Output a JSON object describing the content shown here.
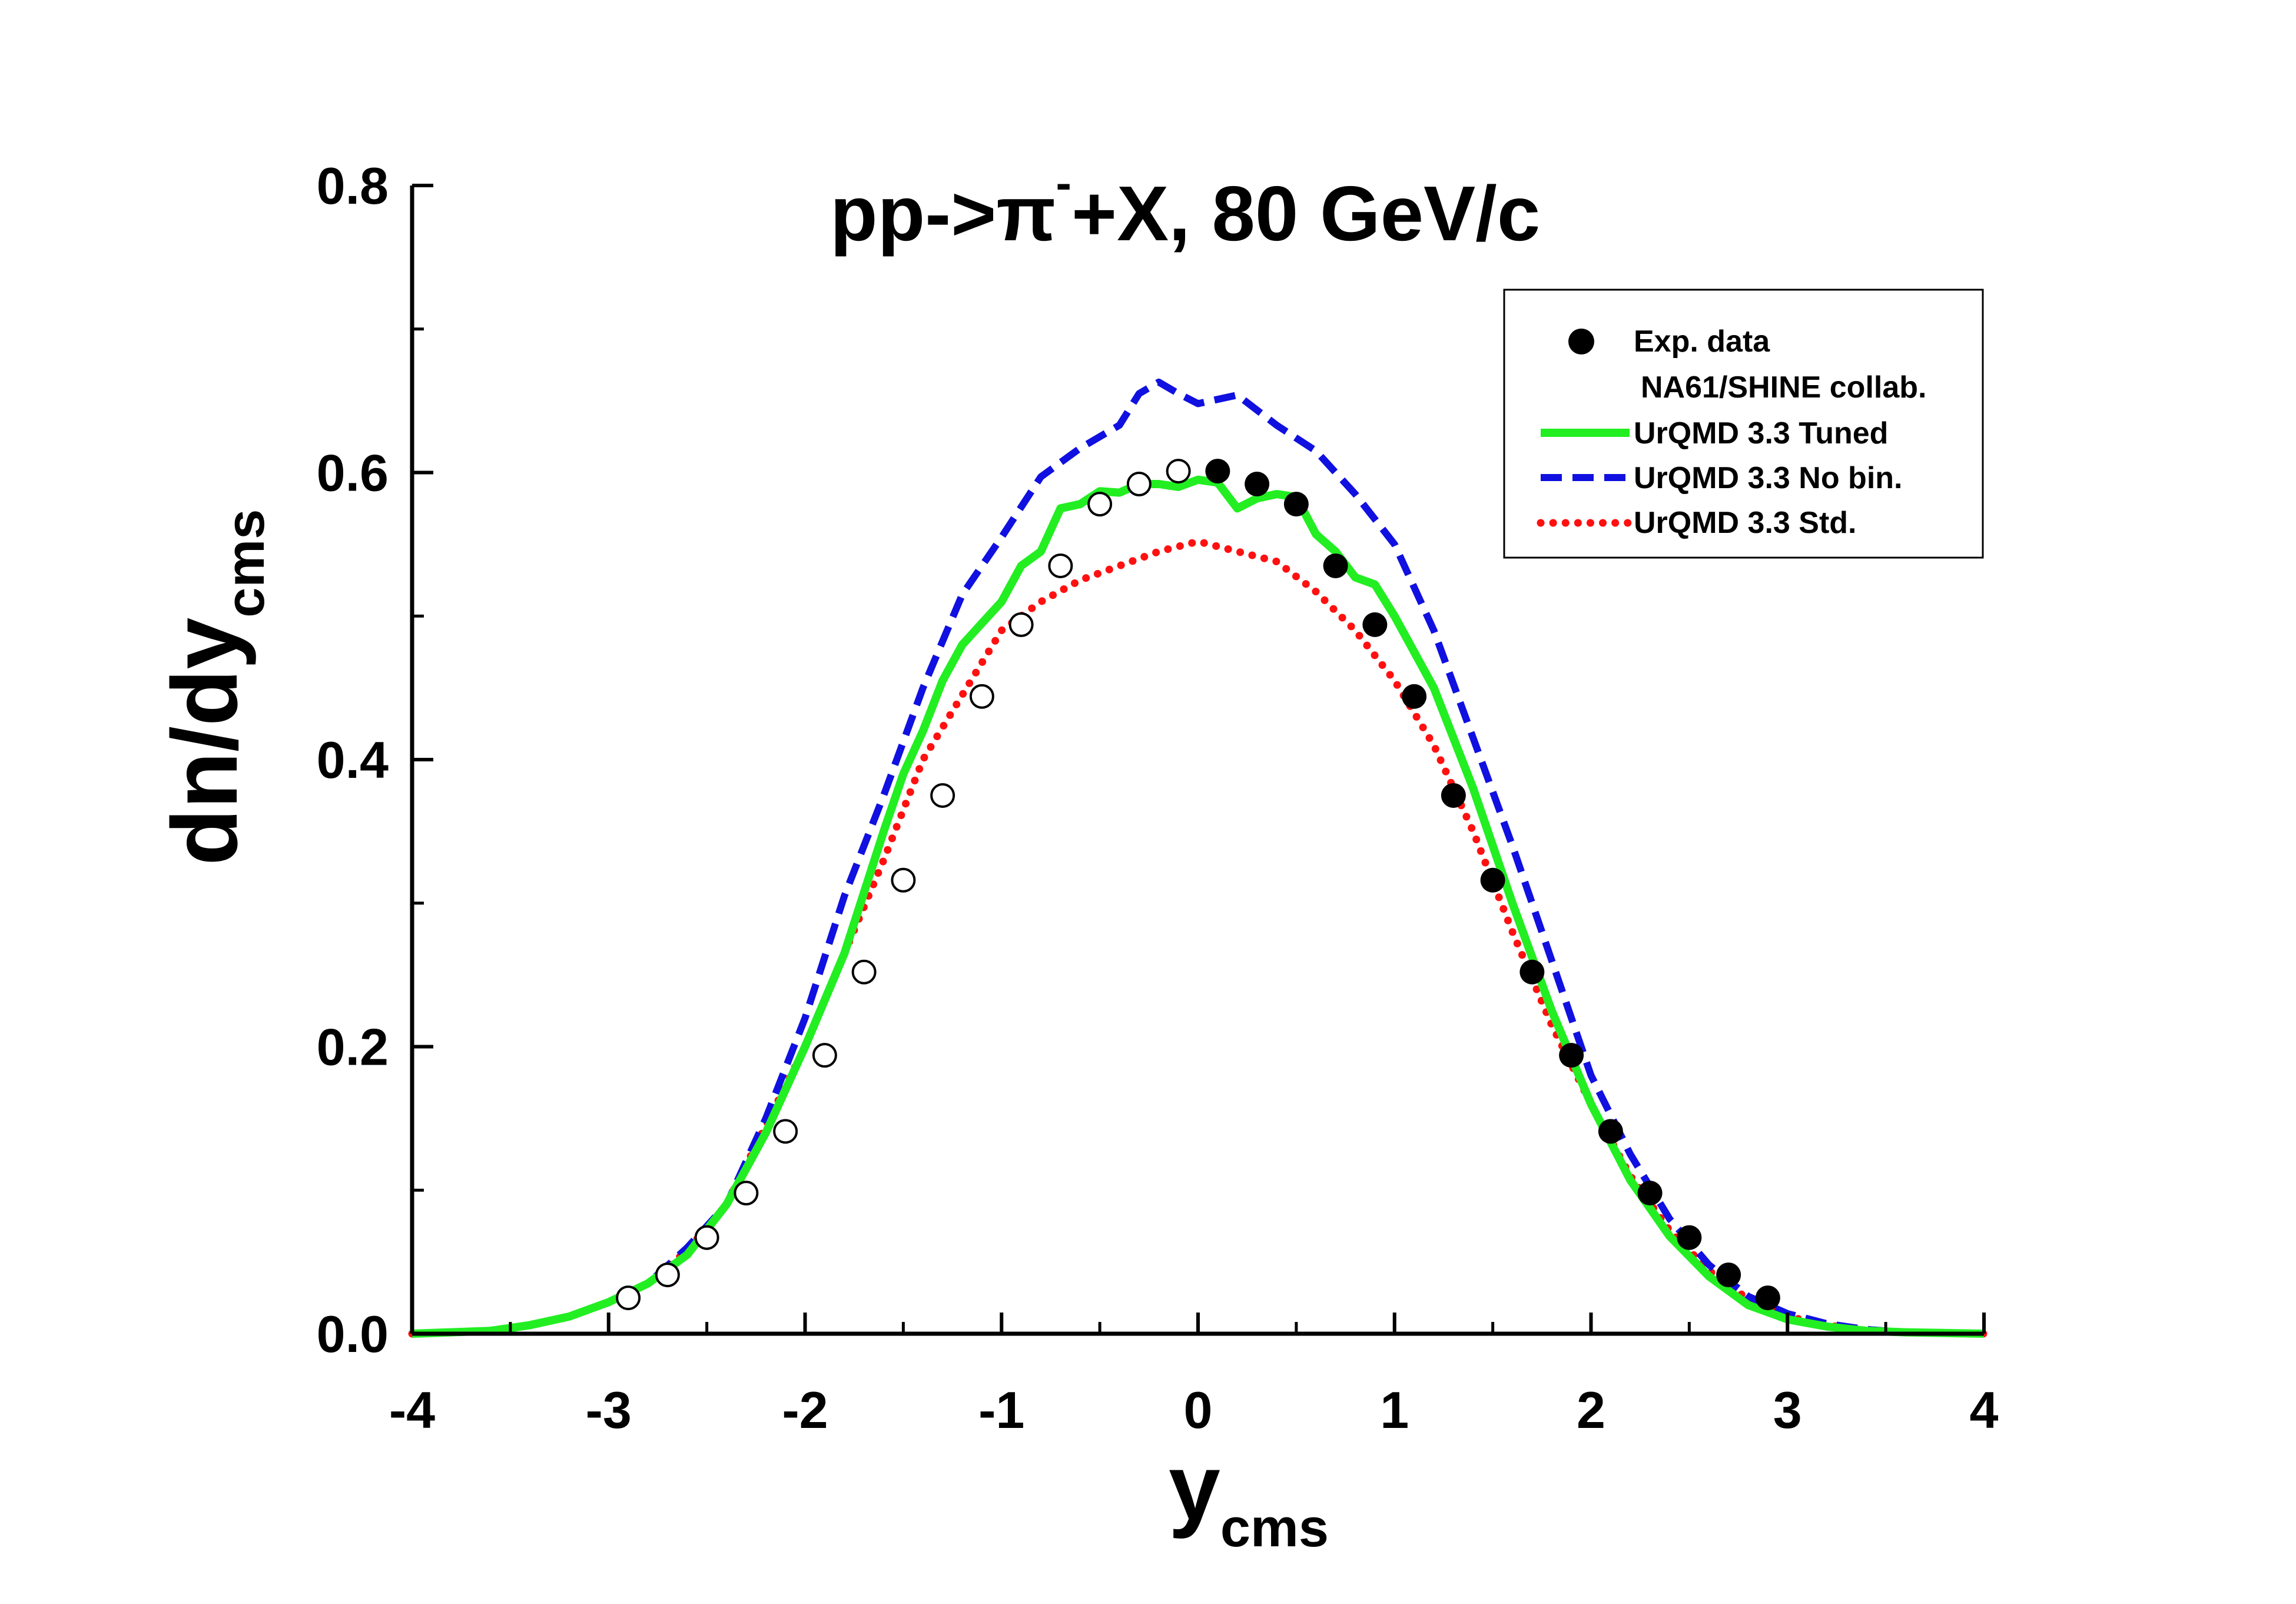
{
  "chart_data": {
    "type": "line",
    "title": {
      "main": "pp->π",
      "superscript": "-",
      "rest": "+X, 80 GeV/c"
    },
    "xlabel": {
      "main": "y",
      "sub": "cms"
    },
    "ylabel": {
      "main": "dn/dy",
      "sub": "cms"
    },
    "xlim": [
      -4,
      4
    ],
    "ylim": [
      0,
      0.8
    ],
    "xticks": [
      -4,
      -3,
      -2,
      -1,
      0,
      1,
      2,
      3,
      4
    ],
    "xtick_labels": [
      "-4",
      "-3",
      "-2",
      "-1",
      "0",
      "1",
      "2",
      "3",
      "4"
    ],
    "yticks": [
      0.0,
      0.2,
      0.4,
      0.6,
      0.8
    ],
    "ytick_labels": [
      "0.0",
      "0.2",
      "0.4",
      "0.6",
      "0.8"
    ],
    "grid": false,
    "legend_position": "top-right",
    "legend": {
      "exp_line1": "Exp. data",
      "exp_line2": "NA61/SHINE collab.",
      "tuned": "UrQMD 3.3 Tuned",
      "nobin": "UrQMD 3.3 No bin.",
      "std": "UrQMD 3.3 Std."
    },
    "colors": {
      "tuned": "#22ee22",
      "nobin": "#1010e0",
      "std": "#ff1010",
      "axis": "#000000"
    },
    "exp_measured": {
      "x": [
        0.1,
        0.3,
        0.5,
        0.7,
        0.9,
        1.1,
        1.3,
        1.5,
        1.7,
        1.9,
        2.1,
        2.3,
        2.5,
        2.7,
        2.9
      ],
      "y": [
        0.601,
        0.592,
        0.578,
        0.535,
        0.494,
        0.444,
        0.375,
        0.316,
        0.252,
        0.194,
        0.141,
        0.098,
        0.067,
        0.041,
        0.025
      ]
    },
    "exp_reflected": {
      "x": [
        -0.1,
        -0.3,
        -0.5,
        -0.7,
        -0.9,
        -1.1,
        -1.3,
        -1.5,
        -1.7,
        -1.9,
        -2.1,
        -2.3,
        -2.5,
        -2.7,
        -2.9
      ],
      "y": [
        0.601,
        0.592,
        0.578,
        0.535,
        0.494,
        0.444,
        0.375,
        0.316,
        0.252,
        0.194,
        0.141,
        0.098,
        0.067,
        0.041,
        0.025
      ]
    },
    "series": [
      {
        "name": "UrQMD 3.3 Tuned",
        "style": "solid",
        "x": [
          -4.0,
          -3.6,
          -3.4,
          -3.2,
          -3.0,
          -2.8,
          -2.6,
          -2.4,
          -2.2,
          -2.0,
          -1.8,
          -1.6,
          -1.5,
          -1.4,
          -1.3,
          -1.2,
          -1.1,
          -1.0,
          -0.9,
          -0.8,
          -0.7,
          -0.6,
          -0.5,
          -0.4,
          -0.3,
          -0.2,
          -0.1,
          0.0,
          0.1,
          0.2,
          0.3,
          0.4,
          0.5,
          0.6,
          0.7,
          0.8,
          0.9,
          1.0,
          1.2,
          1.4,
          1.6,
          1.8,
          2.0,
          2.2,
          2.4,
          2.6,
          2.8,
          3.0,
          3.2,
          3.4,
          3.6,
          4.0
        ],
        "y": [
          0.0,
          0.002,
          0.006,
          0.012,
          0.022,
          0.035,
          0.055,
          0.09,
          0.14,
          0.2,
          0.265,
          0.35,
          0.39,
          0.42,
          0.455,
          0.48,
          0.495,
          0.51,
          0.535,
          0.545,
          0.575,
          0.578,
          0.587,
          0.586,
          0.592,
          0.592,
          0.59,
          0.595,
          0.593,
          0.575,
          0.582,
          0.585,
          0.583,
          0.557,
          0.545,
          0.527,
          0.522,
          0.5,
          0.45,
          0.38,
          0.3,
          0.225,
          0.16,
          0.107,
          0.068,
          0.04,
          0.02,
          0.01,
          0.005,
          0.002,
          0.001,
          0.0
        ]
      },
      {
        "name": "UrQMD 3.3 No bin.",
        "style": "dashed",
        "x": [
          -4.0,
          -3.6,
          -3.4,
          -3.2,
          -3.0,
          -2.8,
          -2.6,
          -2.4,
          -2.2,
          -2.0,
          -1.8,
          -1.6,
          -1.4,
          -1.2,
          -1.0,
          -0.8,
          -0.6,
          -0.4,
          -0.3,
          -0.2,
          -0.1,
          0.0,
          0.2,
          0.4,
          0.6,
          0.8,
          1.0,
          1.2,
          1.4,
          1.6,
          1.8,
          2.0,
          2.2,
          2.4,
          2.6,
          2.8,
          3.0,
          3.2,
          3.4,
          3.6,
          4.0
        ],
        "y": [
          0.0,
          0.002,
          0.006,
          0.012,
          0.022,
          0.035,
          0.06,
          0.09,
          0.15,
          0.22,
          0.305,
          0.375,
          0.45,
          0.515,
          0.555,
          0.597,
          0.617,
          0.633,
          0.655,
          0.663,
          0.655,
          0.648,
          0.654,
          0.633,
          0.615,
          0.585,
          0.55,
          0.49,
          0.415,
          0.34,
          0.26,
          0.18,
          0.125,
          0.08,
          0.048,
          0.026,
          0.014,
          0.007,
          0.003,
          0.001,
          0.0
        ]
      },
      {
        "name": "UrQMD 3.3 Std.",
        "style": "dotted",
        "x": [
          -4.0,
          -3.6,
          -3.4,
          -3.2,
          -3.0,
          -2.8,
          -2.6,
          -2.4,
          -2.2,
          -2.0,
          -1.8,
          -1.6,
          -1.4,
          -1.2,
          -1.0,
          -0.8,
          -0.6,
          -0.4,
          -0.2,
          0.0,
          0.2,
          0.4,
          0.6,
          0.8,
          1.0,
          1.2,
          1.4,
          1.6,
          1.8,
          2.0,
          2.2,
          2.4,
          2.6,
          2.8,
          3.0,
          3.2,
          3.4,
          3.6,
          4.0
        ],
        "y": [
          0.0,
          0.002,
          0.006,
          0.012,
          0.022,
          0.035,
          0.058,
          0.09,
          0.145,
          0.2,
          0.265,
          0.33,
          0.4,
          0.445,
          0.49,
          0.51,
          0.525,
          0.535,
          0.545,
          0.552,
          0.545,
          0.538,
          0.517,
          0.49,
          0.455,
          0.41,
          0.35,
          0.28,
          0.215,
          0.16,
          0.11,
          0.072,
          0.044,
          0.024,
          0.012,
          0.006,
          0.002,
          0.001,
          0.0
        ]
      }
    ]
  }
}
